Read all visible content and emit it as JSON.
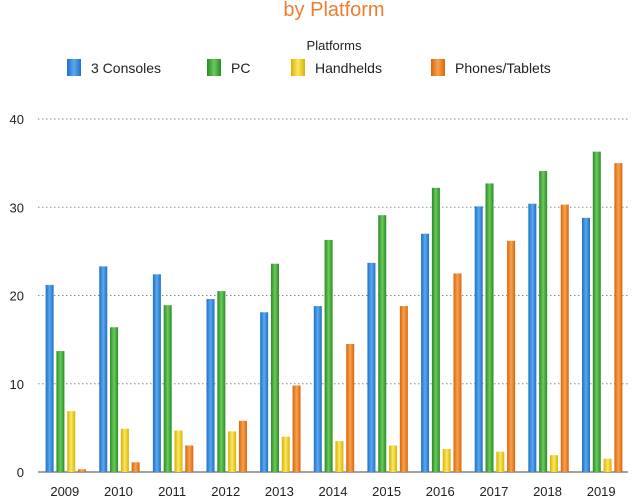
{
  "chart_data": {
    "type": "bar",
    "title": "by Platform",
    "legend": {
      "title": "Platforms",
      "placement": "top"
    },
    "categories": [
      "2009",
      "2010",
      "2011",
      "2012",
      "2013",
      "2014",
      "2015",
      "2016",
      "2017",
      "2018",
      "2019"
    ],
    "series": [
      {
        "name": "3 Consoles",
        "color": "#2E86DE",
        "values": [
          21.2,
          23.3,
          22.4,
          19.6,
          18.1,
          18.8,
          23.7,
          27.0,
          30.1,
          30.4,
          28.8
        ]
      },
      {
        "name": "PC",
        "color": "#3BAA35",
        "values": [
          13.7,
          16.4,
          18.9,
          20.5,
          23.6,
          26.3,
          29.1,
          32.2,
          32.7,
          34.1,
          36.3
        ]
      },
      {
        "name": "Handhelds",
        "color": "#F2D01E",
        "values": [
          6.9,
          4.9,
          4.7,
          4.6,
          4.0,
          3.5,
          3.0,
          2.6,
          2.3,
          1.9,
          1.5
        ]
      },
      {
        "name": "Phones/Tablets",
        "color": "#F07F16",
        "values": [
          0.3,
          1.1,
          3.0,
          5.8,
          9.8,
          14.5,
          18.8,
          22.5,
          26.2,
          30.3,
          35.0
        ]
      }
    ],
    "y_ticks": [
      0,
      10,
      20,
      30,
      40
    ],
    "ylim": [
      0,
      40
    ],
    "grid": true,
    "xlabel": "",
    "ylabel": ""
  }
}
